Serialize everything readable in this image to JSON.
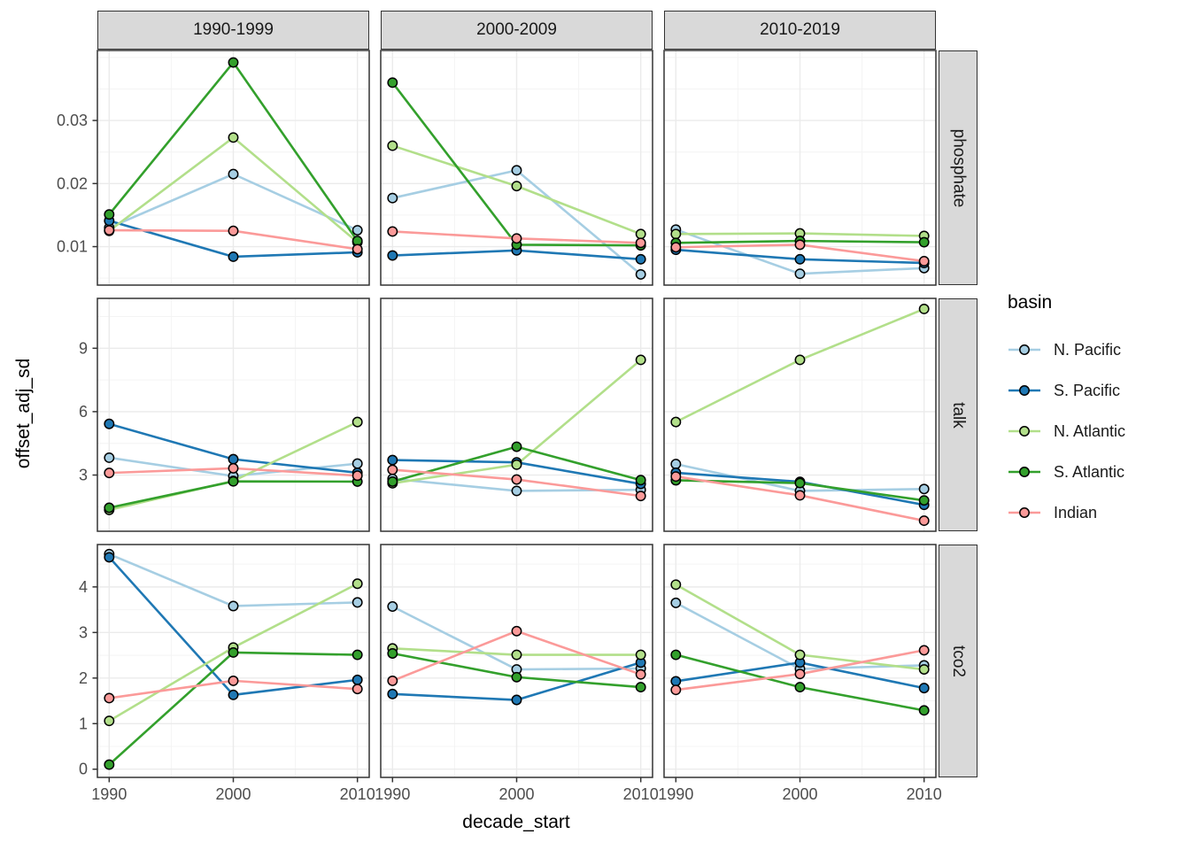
{
  "chart_data": {
    "type": "line",
    "title": "",
    "xlabel": "decade_start",
    "ylabel": "offset_adj_sd",
    "facet_columns": [
      "1990-1999",
      "2000-2009",
      "2010-2019"
    ],
    "facet_rows": [
      "phosphate",
      "talk",
      "tco2"
    ],
    "x": [
      1990,
      2000,
      2010
    ],
    "x_axis": {
      "lim": [
        1989.05,
        2010.95
      ],
      "ticks": [
        1990,
        2000,
        2010
      ],
      "tick_labels": [
        "1990",
        "2000",
        "2010"
      ],
      "minor": [
        1995,
        2005
      ]
    },
    "row_axes": {
      "phosphate": {
        "lim": [
          0.0039,
          0.0411
        ],
        "ticks": [
          0.01,
          0.02,
          0.03
        ],
        "tick_labels": [
          "0.01",
          "0.02",
          "0.03"
        ],
        "minor": [
          0.005,
          0.015,
          0.025,
          0.035,
          0.04
        ]
      },
      "talk": {
        "lim": [
          0.34,
          11.36
        ],
        "ticks": [
          3,
          6,
          9
        ],
        "tick_labels": [
          "3",
          "6",
          "9"
        ],
        "minor": [
          1.5,
          4.5,
          7.5,
          10.5
        ]
      },
      "tco2": {
        "lim": [
          -0.18,
          4.93
        ],
        "ticks": [
          0,
          1,
          2,
          3,
          4
        ],
        "tick_labels": [
          "0",
          "1",
          "2",
          "3",
          "4"
        ],
        "minor": [
          0.5,
          1.5,
          2.5,
          3.5,
          4.5
        ]
      }
    },
    "legend": {
      "title": "basin",
      "position": "right"
    },
    "series": [
      {
        "name": "N. Pacific",
        "color": "#A6CEE3"
      },
      {
        "name": "S. Pacific",
        "color": "#1F78B4"
      },
      {
        "name": "N. Atlantic",
        "color": "#B2DF8A"
      },
      {
        "name": "S. Atlantic",
        "color": "#33A02C"
      },
      {
        "name": "Indian",
        "color": "#FB9A99"
      }
    ],
    "values": {
      "phosphate": {
        "1990-1999": {
          "N. Pacific": [
            0.013,
            0.0215,
            0.0126
          ],
          "S. Pacific": [
            0.0141,
            0.0084,
            0.0091
          ],
          "N. Atlantic": [
            0.0125,
            0.0273,
            0.0107
          ],
          "S. Atlantic": [
            0.0151,
            0.0392,
            0.0109
          ],
          "Indian": [
            0.0126,
            0.0125,
            0.0096
          ]
        },
        "2000-2009": {
          "N. Pacific": [
            0.0177,
            0.0221,
            0.0056
          ],
          "S. Pacific": [
            0.0086,
            0.0094,
            0.008
          ],
          "N. Atlantic": [
            0.026,
            0.0196,
            0.012
          ],
          "S. Atlantic": [
            0.036,
            0.0103,
            0.0102
          ],
          "Indian": [
            0.0124,
            0.0113,
            0.0106
          ]
        },
        "2010-2019": {
          "N. Pacific": [
            0.0127,
            0.0057,
            0.0066
          ],
          "S. Pacific": [
            0.0095,
            0.008,
            0.0074
          ],
          "N. Atlantic": [
            0.012,
            0.0121,
            0.0117
          ],
          "S. Atlantic": [
            0.0106,
            0.0109,
            0.0107
          ],
          "Indian": [
            0.0099,
            0.0103,
            0.0077
          ]
        }
      },
      "talk": {
        "1990-1999": {
          "N. Pacific": [
            3.82,
            2.95,
            3.54
          ],
          "S. Pacific": [
            5.42,
            3.75,
            3.11
          ],
          "N. Atlantic": [
            1.35,
            2.72,
            5.51
          ],
          "S. Atlantic": [
            1.45,
            2.7,
            2.69
          ],
          "Indian": [
            3.1,
            3.32,
            2.97
          ]
        },
        "2000-2009": {
          "N. Pacific": [
            2.82,
            2.25,
            2.3
          ],
          "S. Pacific": [
            3.71,
            3.6,
            2.58
          ],
          "N. Atlantic": [
            2.61,
            3.49,
            8.45
          ],
          "S. Atlantic": [
            2.69,
            4.34,
            2.76
          ],
          "Indian": [
            3.25,
            2.79,
            2.01
          ]
        },
        "2010-2019": {
          "N. Pacific": [
            3.52,
            2.25,
            2.34
          ],
          "S. Pacific": [
            3.11,
            2.68,
            1.59
          ],
          "N. Atlantic": [
            5.51,
            8.45,
            10.86
          ],
          "S. Atlantic": [
            2.75,
            2.62,
            1.8
          ],
          "Indian": [
            2.93,
            2.04,
            0.84
          ]
        }
      },
      "tco2": {
        "1990-1999": {
          "N. Pacific": [
            4.72,
            3.58,
            3.66
          ],
          "S. Pacific": [
            4.65,
            1.63,
            1.96
          ],
          "N. Atlantic": [
            1.06,
            2.67,
            4.07
          ],
          "S. Atlantic": [
            0.1,
            2.56,
            2.51
          ],
          "Indian": [
            1.56,
            1.94,
            1.76
          ]
        },
        "2000-2009": {
          "N. Pacific": [
            3.57,
            2.19,
            2.21
          ],
          "S. Pacific": [
            1.65,
            1.52,
            2.34
          ],
          "N. Atlantic": [
            2.65,
            2.51,
            2.51
          ],
          "S. Atlantic": [
            2.54,
            2.02,
            1.8
          ],
          "Indian": [
            1.94,
            3.03,
            2.08
          ]
        },
        "2010-2019": {
          "N. Pacific": [
            3.65,
            2.2,
            2.28
          ],
          "S. Pacific": [
            1.93,
            2.34,
            1.78
          ],
          "N. Atlantic": [
            4.05,
            2.51,
            2.19
          ],
          "S. Atlantic": [
            2.51,
            1.8,
            1.29
          ],
          "Indian": [
            1.74,
            2.09,
            2.61
          ]
        }
      }
    },
    "grid": true,
    "theme": {
      "panel_border": "#333333",
      "strip_bg": "#D9D9D9",
      "grid_major": "#EBEBEB",
      "grid_minor": "#F4F4F4",
      "tick_label_color": "#4D4D4D",
      "point_stroke": "#000000"
    }
  }
}
